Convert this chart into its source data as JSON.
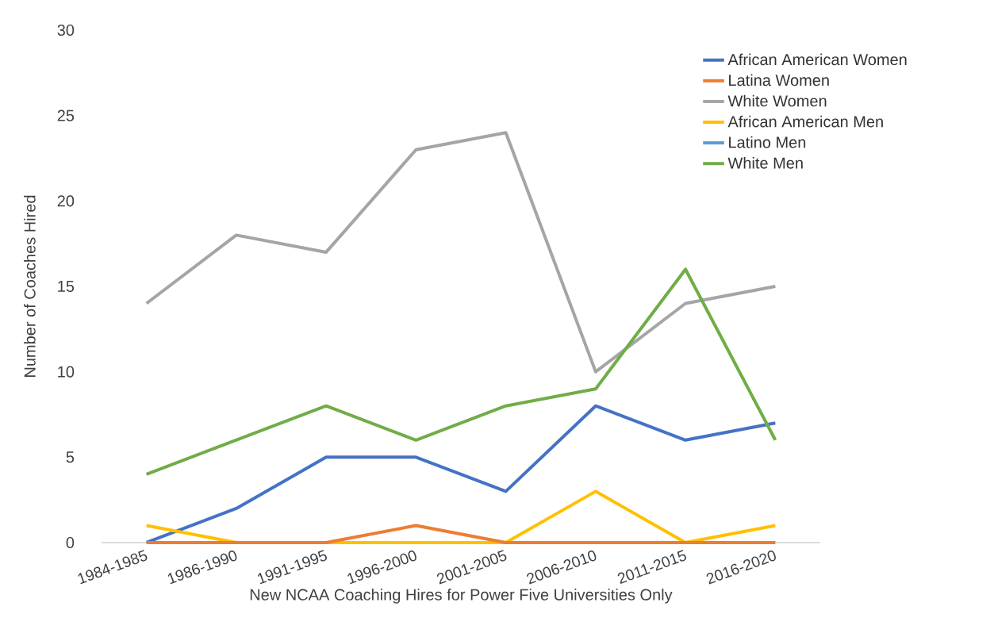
{
  "chart_data": {
    "type": "line",
    "xlabel": "New NCAA Coaching Hires for Power Five Universities Only",
    "ylabel": "Number of Coaches Hired",
    "categories": [
      "1984-1985",
      "1986-1990",
      "1991-1995",
      "1996-2000",
      "2001-2005",
      "2006-2010",
      "2011-2015",
      "2016-2020"
    ],
    "series": [
      {
        "name": "African American Women",
        "color": "#4472c4",
        "values": [
          0,
          2,
          5,
          5,
          3,
          8,
          6,
          7
        ]
      },
      {
        "name": "Latina Women",
        "color": "#ed7d31",
        "values": [
          0,
          0,
          0,
          1,
          0,
          0,
          0,
          0
        ]
      },
      {
        "name": "White Women",
        "color": "#a5a5a5",
        "values": [
          14,
          18,
          17,
          23,
          24,
          10,
          14,
          15
        ]
      },
      {
        "name": "African American Men",
        "color": "#ffc000",
        "values": [
          1,
          0,
          0,
          0,
          0,
          3,
          0,
          1
        ]
      },
      {
        "name": "Latino Men",
        "color": "#5b9bd5",
        "values": [
          null,
          null,
          null,
          null,
          null,
          null,
          null,
          null
        ]
      },
      {
        "name": "White Men",
        "color": "#70ad47",
        "values": [
          4,
          6,
          8,
          6,
          8,
          9,
          16,
          6
        ]
      }
    ],
    "ylim": [
      0,
      30
    ],
    "yticks": [
      0,
      5,
      10,
      15,
      20,
      25,
      30
    ],
    "grid": false,
    "legend": "top right"
  }
}
